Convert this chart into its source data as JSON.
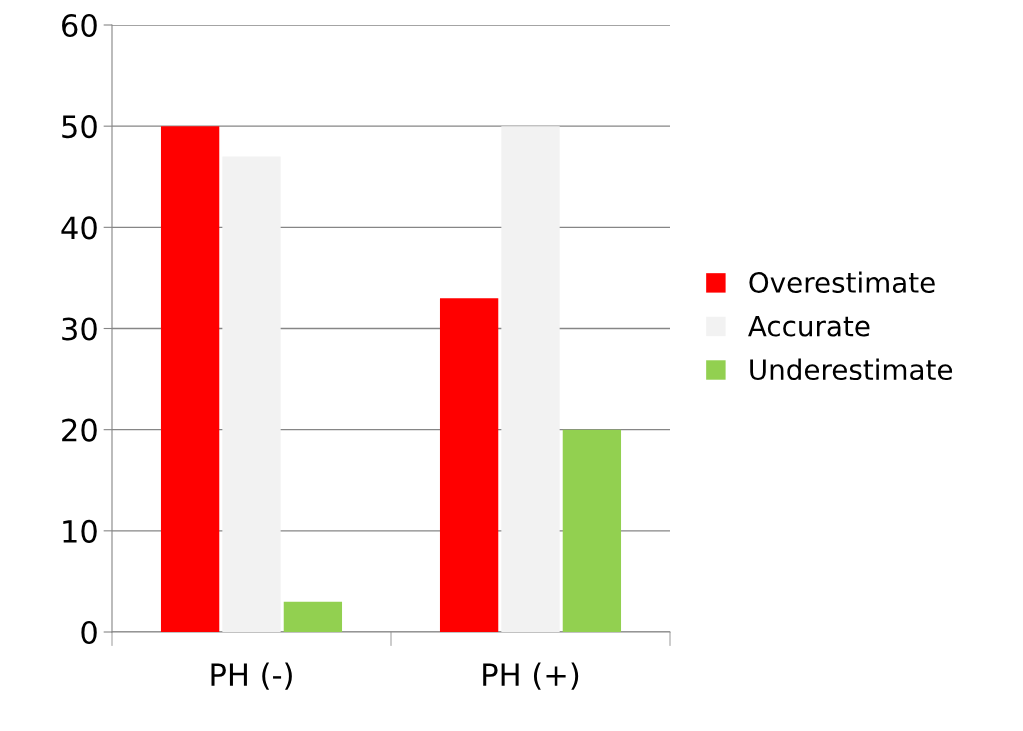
{
  "chart_data": {
    "type": "bar",
    "categories": [
      "PH (-)",
      "PH (+)"
    ],
    "series": [
      {
        "name": "Overestimate",
        "color": "#ff0000",
        "values": [
          50,
          33
        ]
      },
      {
        "name": "Accurate",
        "color": "#f2f2f2",
        "values": [
          47,
          50
        ]
      },
      {
        "name": "Underestimate",
        "color": "#92d050",
        "values": [
          3,
          20
        ]
      }
    ],
    "ylim": [
      0,
      60
    ],
    "yticks": [
      0,
      10,
      20,
      30,
      40,
      50,
      60
    ],
    "grid": "y",
    "legend": "right"
  }
}
